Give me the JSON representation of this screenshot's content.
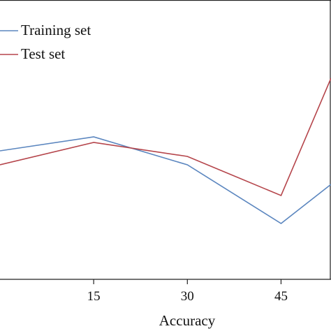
{
  "chart_data": {
    "type": "line",
    "title": "",
    "xlabel": "Accuracy",
    "ylabel": "",
    "x": [
      0,
      15,
      30,
      45,
      53
    ],
    "x_ticks": [
      15,
      30,
      45
    ],
    "xlim": [
      0,
      53
    ],
    "ylim": [
      0,
      1
    ],
    "grid": false,
    "legend_position": "top-left",
    "series": [
      {
        "name": "Training set",
        "color": "#5b86bf",
        "values": [
          0.46,
          0.51,
          0.41,
          0.2,
          0.34
        ]
      },
      {
        "name": "Test set",
        "color": "#b5454b",
        "values": [
          0.41,
          0.49,
          0.44,
          0.3,
          0.72
        ]
      }
    ]
  }
}
